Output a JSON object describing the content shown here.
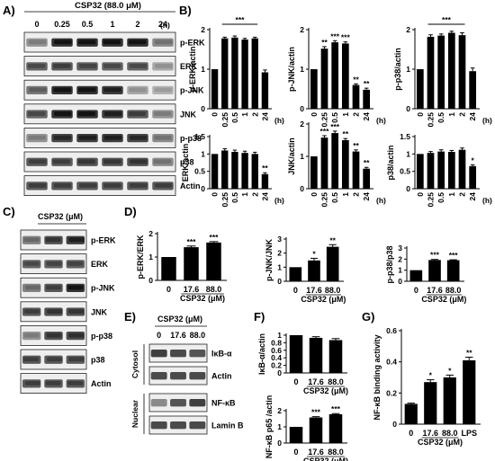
{
  "panel_letters": {
    "a": "A)",
    "b": "B)",
    "c": "C)",
    "d": "D)",
    "e": "E)",
    "f": "F)",
    "g": "G)"
  },
  "blots": {
    "a": {
      "treatment": "CSP32 (88.0 μM)",
      "lanes": [
        "0",
        "0.25",
        "0.5",
        "1",
        "2",
        "24"
      ],
      "unit": "(h)",
      "bands": [
        "p-ERK",
        "ERK",
        "p-JNK",
        "JNK",
        "p-p38",
        "p38",
        "Actin"
      ]
    },
    "c": {
      "treatment": "CSP32 (μM)",
      "lanes": [
        "0",
        "17.6",
        "88.0"
      ],
      "bands": [
        "p-ERK",
        "ERK",
        "p-JNK",
        "JNK",
        "p-p38",
        "p38",
        "Actin"
      ]
    },
    "e": {
      "treatment": "CSP32 (μM)",
      "lanes": [
        "0",
        "17.6",
        "88.0"
      ],
      "groups": [
        {
          "label": "Cytosol",
          "bands": [
            "IκB-α",
            "Actin"
          ]
        },
        {
          "label": "Nuclear",
          "bands": [
            "NF-κB",
            "Lamin B"
          ]
        }
      ]
    }
  },
  "chart_data": [
    {
      "id": "b1",
      "type": "bar",
      "categories": [
        "0",
        "0.25",
        "0.5",
        "1",
        "2",
        "24"
      ],
      "xunit": "(h)",
      "values": [
        1.0,
        1.78,
        1.8,
        1.75,
        1.78,
        0.92
      ],
      "errors": [
        0,
        0.03,
        0.04,
        0.03,
        0.03,
        0.06
      ],
      "ylabel": "p-ERK/actin",
      "ylim": [
        0,
        2
      ],
      "yticks": [
        0,
        1,
        2
      ],
      "sig": [
        "",
        "",
        "",
        "",
        "",
        ""
      ],
      "bracket": "***"
    },
    {
      "id": "b2",
      "type": "bar",
      "categories": [
        "0",
        "0.25",
        "0.5",
        "1",
        "2",
        "24"
      ],
      "xunit": "(h)",
      "values": [
        1.0,
        1.52,
        1.68,
        1.65,
        0.6,
        0.48
      ],
      "errors": [
        0,
        0.05,
        0.04,
        0.04,
        0.03,
        0.04
      ],
      "ylabel": "p-JNK/actin",
      "ylim": [
        0,
        2
      ],
      "yticks": [
        0,
        1,
        2
      ],
      "sig": [
        "",
        "**",
        "***",
        "***",
        "**",
        "**"
      ]
    },
    {
      "id": "b3",
      "type": "bar",
      "categories": [
        "0",
        "0.25",
        "0.5",
        "1",
        "2",
        "24"
      ],
      "xunit": "(h)",
      "values": [
        1.0,
        1.82,
        1.85,
        1.92,
        1.86,
        0.95
      ],
      "errors": [
        0,
        0.05,
        0.04,
        0.04,
        0.06,
        0.08
      ],
      "ylabel": "p-p38/actin",
      "ylim": [
        0,
        2
      ],
      "yticks": [
        0,
        1,
        2
      ],
      "sig": [
        "",
        "",
        "",
        "",
        "",
        ""
      ],
      "bracket": "***"
    },
    {
      "id": "b4",
      "type": "bar",
      "categories": [
        "0",
        "0.25",
        "0.5",
        "1",
        "2",
        "24"
      ],
      "xunit": "(h)",
      "values": [
        1.0,
        1.1,
        1.06,
        1.03,
        1.0,
        0.42
      ],
      "errors": [
        0,
        0.05,
        0.05,
        0.05,
        0.05,
        0.04
      ],
      "ylabel": "ERK/actin",
      "ylim": [
        0,
        1.5
      ],
      "yticks": [
        0,
        0.5,
        1,
        1.5
      ],
      "sig": [
        "",
        "",
        "",
        "",
        "",
        "**"
      ]
    },
    {
      "id": "b5",
      "type": "bar",
      "categories": [
        "0",
        "0.25",
        "0.5",
        "1",
        "2",
        "24"
      ],
      "xunit": "(h)",
      "values": [
        1.0,
        1.58,
        1.72,
        1.5,
        1.15,
        0.62
      ],
      "errors": [
        0,
        0.06,
        0.06,
        0.05,
        0.05,
        0.04
      ],
      "ylabel": "JNK/actin",
      "ylim": [
        0,
        2
      ],
      "yticks": [
        0,
        1,
        2
      ],
      "sig": [
        "",
        "***",
        "***",
        "**",
        "**",
        "**"
      ]
    },
    {
      "id": "b6",
      "type": "bar",
      "categories": [
        "0",
        "0.25",
        "0.5",
        "1",
        "2",
        "24"
      ],
      "xunit": "(h)",
      "values": [
        1.0,
        1.03,
        1.07,
        1.06,
        1.12,
        0.65
      ],
      "errors": [
        0,
        0.04,
        0.05,
        0.04,
        0.05,
        0.04
      ],
      "ylabel": "p38/actin",
      "ylim": [
        0,
        1.5
      ],
      "yticks": [
        0,
        0.5,
        1,
        1.5
      ],
      "sig": [
        "",
        "",
        "",
        "",
        "",
        "*"
      ]
    },
    {
      "id": "d1",
      "type": "bar",
      "categories": [
        "0",
        "17.6",
        "88.0"
      ],
      "xlabel": "CSP32 (μM)",
      "values": [
        1.0,
        1.42,
        1.62
      ],
      "errors": [
        0,
        0.05,
        0.04
      ],
      "ylabel": "p-ERK/ERK",
      "ylim": [
        0,
        2
      ],
      "yticks": [
        0,
        1,
        2
      ],
      "sig": [
        "",
        "***",
        "***"
      ]
    },
    {
      "id": "d2",
      "type": "bar",
      "categories": [
        "0",
        "17.6",
        "88.0"
      ],
      "xlabel": "CSP32 (μM)",
      "values": [
        1.0,
        1.48,
        2.45
      ],
      "errors": [
        0,
        0.15,
        0.15
      ],
      "ylabel": "p-JNK/JNK",
      "ylim": [
        0,
        3
      ],
      "yticks": [
        0,
        1,
        2,
        3
      ],
      "sig": [
        "",
        "*",
        "**"
      ]
    },
    {
      "id": "d3",
      "type": "bar",
      "categories": [
        "0",
        "17.6",
        "88.0"
      ],
      "xlabel": "CSP32 (μM)",
      "values": [
        1.0,
        1.92,
        1.9
      ],
      "errors": [
        0,
        0.05,
        0.04
      ],
      "ylabel": "p-p38/p38",
      "ylim": [
        0,
        3
      ],
      "yticks": [
        0,
        1,
        2,
        3
      ],
      "sig": [
        "",
        "***",
        "***"
      ]
    },
    {
      "id": "f1",
      "type": "bar",
      "categories": [
        "0",
        "17.6",
        "88.0"
      ],
      "xlabel": "CSP32 (μM)",
      "values": [
        1.0,
        0.93,
        0.87
      ],
      "errors": [
        0,
        0.03,
        0.04
      ],
      "ylabel": "IκB-α/actin",
      "ylim": [
        0,
        1.0
      ],
      "yticks": [
        0,
        0.2,
        0.4,
        0.6,
        0.8,
        1.0
      ],
      "sig": [
        "",
        "",
        ""
      ]
    },
    {
      "id": "f2",
      "type": "bar",
      "categories": [
        "0",
        "17.6",
        "88.0"
      ],
      "xlabel": "CSP32 (μM)",
      "values": [
        1.0,
        1.58,
        1.78
      ],
      "errors": [
        0,
        0.05,
        0.04
      ],
      "ylabel": "NF-κB p65 /actin",
      "ylim": [
        0,
        2
      ],
      "yticks": [
        0,
        1,
        2
      ],
      "sig": [
        "",
        "***",
        "***"
      ]
    },
    {
      "id": "g",
      "type": "bar",
      "categories": [
        "0",
        "17.6",
        "88.0",
        "LPS"
      ],
      "xlabel": "CSP32 (μM)",
      "values": [
        0.13,
        0.27,
        0.3,
        0.41
      ],
      "errors": [
        0.005,
        0.015,
        0.015,
        0.02
      ],
      "ylabel": "NF-κB binding activity",
      "ylim": [
        0,
        0.6
      ],
      "yticks": [
        0,
        0.2,
        0.4,
        0.6
      ],
      "sig": [
        "",
        "*",
        "*",
        "**"
      ]
    }
  ]
}
